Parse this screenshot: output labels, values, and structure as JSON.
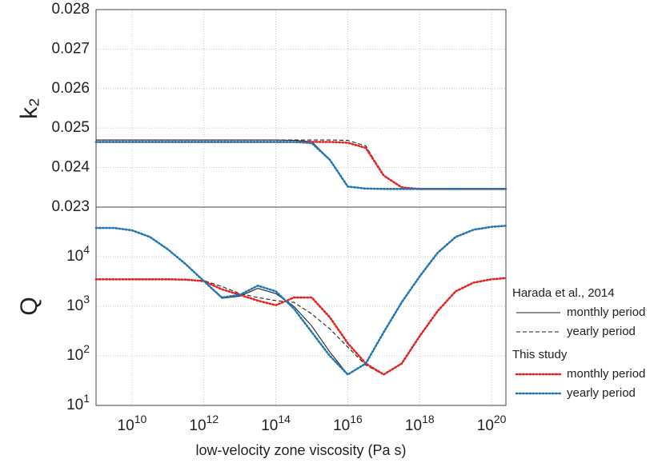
{
  "chart_data": [
    {
      "type": "line",
      "ylabel": "k₂",
      "xscale": "log",
      "yscale": "linear",
      "grid": true,
      "x": [
        1000000000.0,
        3160000000.0,
        10000000000.0,
        31600000000.0,
        100000000000.0,
        316000000000.0,
        1000000000000.0,
        3160000000000.0,
        10000000000000.0,
        31600000000000.0,
        100000000000000.0,
        316000000000000.0,
        1000000000000000.0,
        3160000000000000.0,
        1e+16,
        3.16e+16,
        1e+17,
        3.16e+17,
        1e+18,
        3.16e+18,
        1e+19,
        3.16e+19,
        1e+20,
        2.5e+20
      ],
      "xlim": [
        1000000000.0,
        2.5e+20
      ],
      "xticks": [
        10000000000.0,
        1000000000000.0,
        100000000000000.0,
        1e+16,
        1e+18,
        1e+20
      ],
      "ylim": [
        0.023,
        0.028
      ],
      "yticks": [
        0.023,
        0.024,
        0.025,
        0.026,
        0.027,
        0.028
      ],
      "series": [
        {
          "name": "monthly period",
          "color": "#222222",
          "style": "solid",
          "values": [
            0.0247,
            0.0247,
            0.0247,
            0.0247,
            0.0247,
            0.0247,
            0.0247,
            0.0247,
            0.0247,
            0.0247,
            0.0247,
            0.02469,
            0.02466,
            0.0242,
            0.02352,
            0.02347,
            0.02346,
            0.02346,
            0.02346,
            0.02346,
            0.02346,
            0.02346,
            0.02346,
            0.02346
          ]
        },
        {
          "name": "yearly period",
          "color": "#222222",
          "style": "dashed",
          "values": [
            0.0247,
            0.0247,
            0.0247,
            0.0247,
            0.0247,
            0.0247,
            0.0247,
            0.0247,
            0.0247,
            0.0247,
            0.0247,
            0.0247,
            0.0247,
            0.0247,
            0.02469,
            0.02455,
            0.0238,
            0.0235,
            0.02346,
            0.02346,
            0.02346,
            0.02346,
            0.02346,
            0.02346
          ]
        },
        {
          "name": "monthly period",
          "color": "#e8201e",
          "style": "dotted",
          "values": [
            0.02465,
            0.02465,
            0.02465,
            0.02465,
            0.02465,
            0.02465,
            0.02465,
            0.02465,
            0.02465,
            0.02465,
            0.02465,
            0.02465,
            0.02465,
            0.02465,
            0.02463,
            0.0245,
            0.0238,
            0.0235,
            0.02346,
            0.02346,
            0.02346,
            0.02346,
            0.02346,
            0.02346
          ]
        },
        {
          "name": "yearly period",
          "color": "#1f77b4",
          "style": "dotted",
          "values": [
            0.02465,
            0.02465,
            0.02465,
            0.02465,
            0.02465,
            0.02465,
            0.02465,
            0.02465,
            0.02465,
            0.02465,
            0.02465,
            0.02465,
            0.02462,
            0.0242,
            0.02352,
            0.02347,
            0.02346,
            0.02346,
            0.02346,
            0.02346,
            0.02346,
            0.02346,
            0.02346,
            0.02346
          ]
        }
      ]
    },
    {
      "type": "line",
      "ylabel": "Q",
      "xlabel": "low-velocity zone viscosity (Pa s)",
      "xscale": "log",
      "yscale": "log",
      "grid": true,
      "x": [
        1000000000.0,
        3160000000.0,
        10000000000.0,
        31600000000.0,
        100000000000.0,
        316000000000.0,
        1000000000000.0,
        3160000000000.0,
        10000000000000.0,
        31600000000000.0,
        100000000000000.0,
        316000000000000.0,
        1000000000000000.0,
        3160000000000000.0,
        1e+16,
        3.16e+16,
        1e+17,
        3.16e+17,
        1e+18,
        3.16e+18,
        1e+19,
        3.16e+19,
        1e+20,
        2.5e+20
      ],
      "xlim": [
        1000000000.0,
        2.5e+20
      ],
      "xticks": [
        {
          "value": 10000000000.0,
          "label": "10^10"
        },
        {
          "value": 1000000000000.0,
          "label": "10^12"
        },
        {
          "value": 100000000000000.0,
          "label": "10^14"
        },
        {
          "value": 1e+16,
          "label": "10^16"
        },
        {
          "value": 1e+18,
          "label": "10^18"
        },
        {
          "value": 1e+20,
          "label": "10^20"
        }
      ],
      "ylim": [
        10,
        100000
      ],
      "yticks": [
        {
          "value": 10,
          "label": "10^1"
        },
        {
          "value": 100,
          "label": "10^2"
        },
        {
          "value": 1000,
          "label": "10^3"
        },
        {
          "value": 10000,
          "label": "10^4"
        }
      ],
      "legend_titles": [
        "Harada et al., 2014",
        "This study"
      ],
      "series": [
        {
          "name": "monthly period",
          "color": "#222222",
          "style": "solid",
          "values": [
            38000,
            38000,
            34000,
            25000,
            14000,
            7000,
            3200,
            1450,
            1600,
            2300,
            1800,
            1000,
            400,
            120,
            42,
            70,
            300,
            1200,
            4000,
            12000,
            25000,
            35000,
            40000,
            42000
          ]
        },
        {
          "name": "yearly period",
          "color": "#222222",
          "style": "dashed",
          "values": [
            3500,
            3500,
            3500,
            3500,
            3500,
            3450,
            3300,
            2500,
            1800,
            1500,
            1300,
            1200,
            700,
            350,
            150,
            65,
            42,
            70,
            250,
            800,
            2000,
            3000,
            3500,
            3700
          ]
        },
        {
          "name": "monthly period",
          "color": "#e8201e",
          "style": "dotted",
          "values": [
            3500,
            3500,
            3500,
            3500,
            3500,
            3450,
            3200,
            2200,
            1700,
            1300,
            1050,
            1500,
            1500,
            600,
            180,
            70,
            42,
            70,
            250,
            800,
            2000,
            3000,
            3500,
            3700
          ]
        },
        {
          "name": "yearly period",
          "color": "#1f77b4",
          "style": "dotted",
          "values": [
            38000,
            38000,
            34000,
            25000,
            14000,
            7000,
            3200,
            1500,
            1700,
            2600,
            2000,
            900,
            300,
            100,
            42,
            70,
            300,
            1200,
            4000,
            12000,
            25000,
            35000,
            40000,
            42000
          ]
        }
      ]
    }
  ]
}
